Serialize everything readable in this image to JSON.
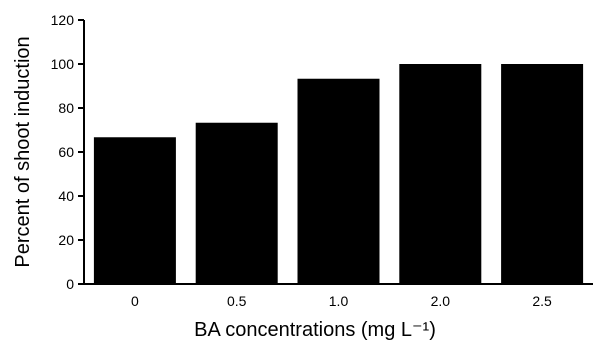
{
  "chart_data": {
    "type": "bar",
    "title": "",
    "xlabel": "BA concentrations (mg L⁻¹)",
    "ylabel": "Percent of shoot induction",
    "categories": [
      "0",
      "0.5",
      "1.0",
      "2.0",
      "2.5"
    ],
    "values": [
      66.7,
      73.3,
      93.3,
      100,
      100
    ],
    "ylim": [
      0,
      120
    ],
    "yticks": [
      "0",
      "20",
      "40",
      "60",
      "80",
      "100",
      "120"
    ],
    "grid": false,
    "legend": "none",
    "bar_color": "#000000"
  }
}
